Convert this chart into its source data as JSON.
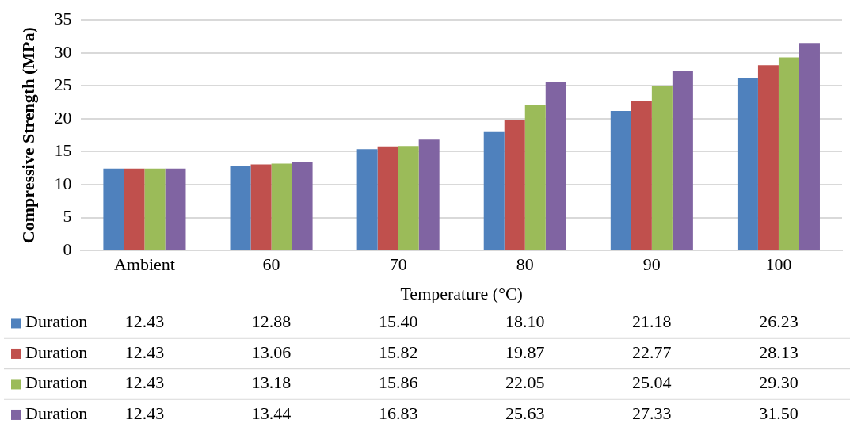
{
  "chart_data": {
    "type": "bar",
    "xlabel": "Temperature (°C)",
    "ylabel": "Compressive Strength (MPa)",
    "categories": [
      "Ambient",
      "60",
      "70",
      "80",
      "90",
      "100"
    ],
    "series": [
      {
        "name": "Duration",
        "color": "#4f81bd",
        "values": [
          12.43,
          12.88,
          15.4,
          18.1,
          21.18,
          26.23
        ],
        "value_labels": [
          "12.43",
          "12.88",
          "15.40",
          "18.10",
          "21.18",
          "26.23"
        ]
      },
      {
        "name": "Duration",
        "color": "#c0504d",
        "values": [
          12.43,
          13.06,
          15.82,
          19.87,
          22.77,
          28.13
        ],
        "value_labels": [
          "12.43",
          "13.06",
          "15.82",
          "19.87",
          "22.77",
          "28.13"
        ]
      },
      {
        "name": "Duration",
        "color": "#9bbb59",
        "values": [
          12.43,
          13.18,
          15.86,
          22.05,
          25.04,
          29.3
        ],
        "value_labels": [
          "12.43",
          "13.18",
          "15.86",
          "22.05",
          "25.04",
          "29.30"
        ]
      },
      {
        "name": "Duration",
        "color": "#8064a2",
        "values": [
          12.43,
          13.44,
          16.83,
          25.63,
          27.33,
          31.5
        ],
        "value_labels": [
          "12.43",
          "13.44",
          "16.83",
          "25.63",
          "27.33",
          "31.50"
        ]
      }
    ],
    "ylim": [
      0,
      35
    ],
    "yticks": [
      0,
      5,
      10,
      15,
      20,
      25,
      30,
      35
    ],
    "grid": "y",
    "legend": "bottom"
  }
}
